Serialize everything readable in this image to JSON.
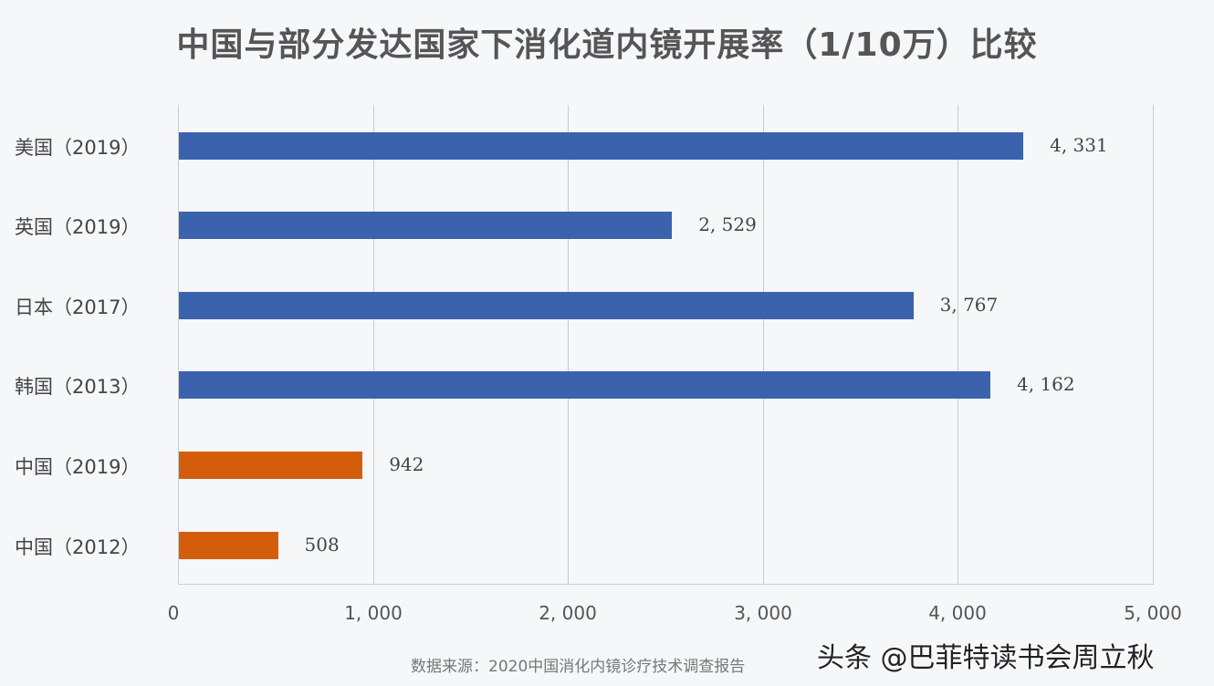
{
  "chart_data": {
    "type": "bar",
    "orientation": "horizontal",
    "title": "中国与部分发达国家下消化道内镜开展率（1/10万）比较",
    "categories": [
      "美国（2019）",
      "英国（2019）",
      "日本（2017）",
      "韩国（2013）",
      "中国（2019）",
      "中国（2012）"
    ],
    "values": [
      4331,
      2529,
      3767,
      4162,
      942,
      508
    ],
    "value_labels": [
      "4, 331",
      "2, 529",
      "3, 767",
      "4, 162",
      "942",
      "508"
    ],
    "colors": [
      "#3b62ad",
      "#3b62ad",
      "#3b62ad",
      "#3b62ad",
      "#d45d0c",
      "#d45d0c"
    ],
    "xlabel": "",
    "ylabel": "",
    "xlim": [
      0,
      5000
    ],
    "xticks": [
      "0",
      "1, 000",
      "2, 000",
      "3, 000",
      "4, 000",
      "5, 000"
    ],
    "grid": true,
    "legend": null
  },
  "source": "数据来源：2020中国消化内镜诊疗技术调查报告",
  "watermark": "头条 @巴菲特读书会周立秋"
}
